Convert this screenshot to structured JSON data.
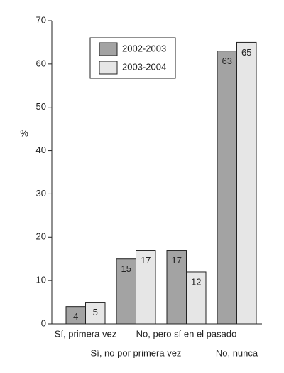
{
  "chart_data": {
    "type": "bar",
    "y_label": "%",
    "categories": [
      "Sí, primera vez",
      "Sí, no por primera vez",
      "No, pero sí en el pasado",
      "No, nunca"
    ],
    "series": [
      {
        "name": "2002-2003",
        "color": "#a3a3a3",
        "values": [
          4,
          15,
          17,
          63
        ]
      },
      {
        "name": "2003-2004",
        "color": "#e6e6e6",
        "values": [
          5,
          17,
          12,
          65
        ]
      }
    ],
    "ylim": [
      0,
      70
    ],
    "yticks": [
      0,
      10,
      20,
      30,
      40,
      50,
      60,
      70
    ],
    "grid": false,
    "legend": "top"
  }
}
